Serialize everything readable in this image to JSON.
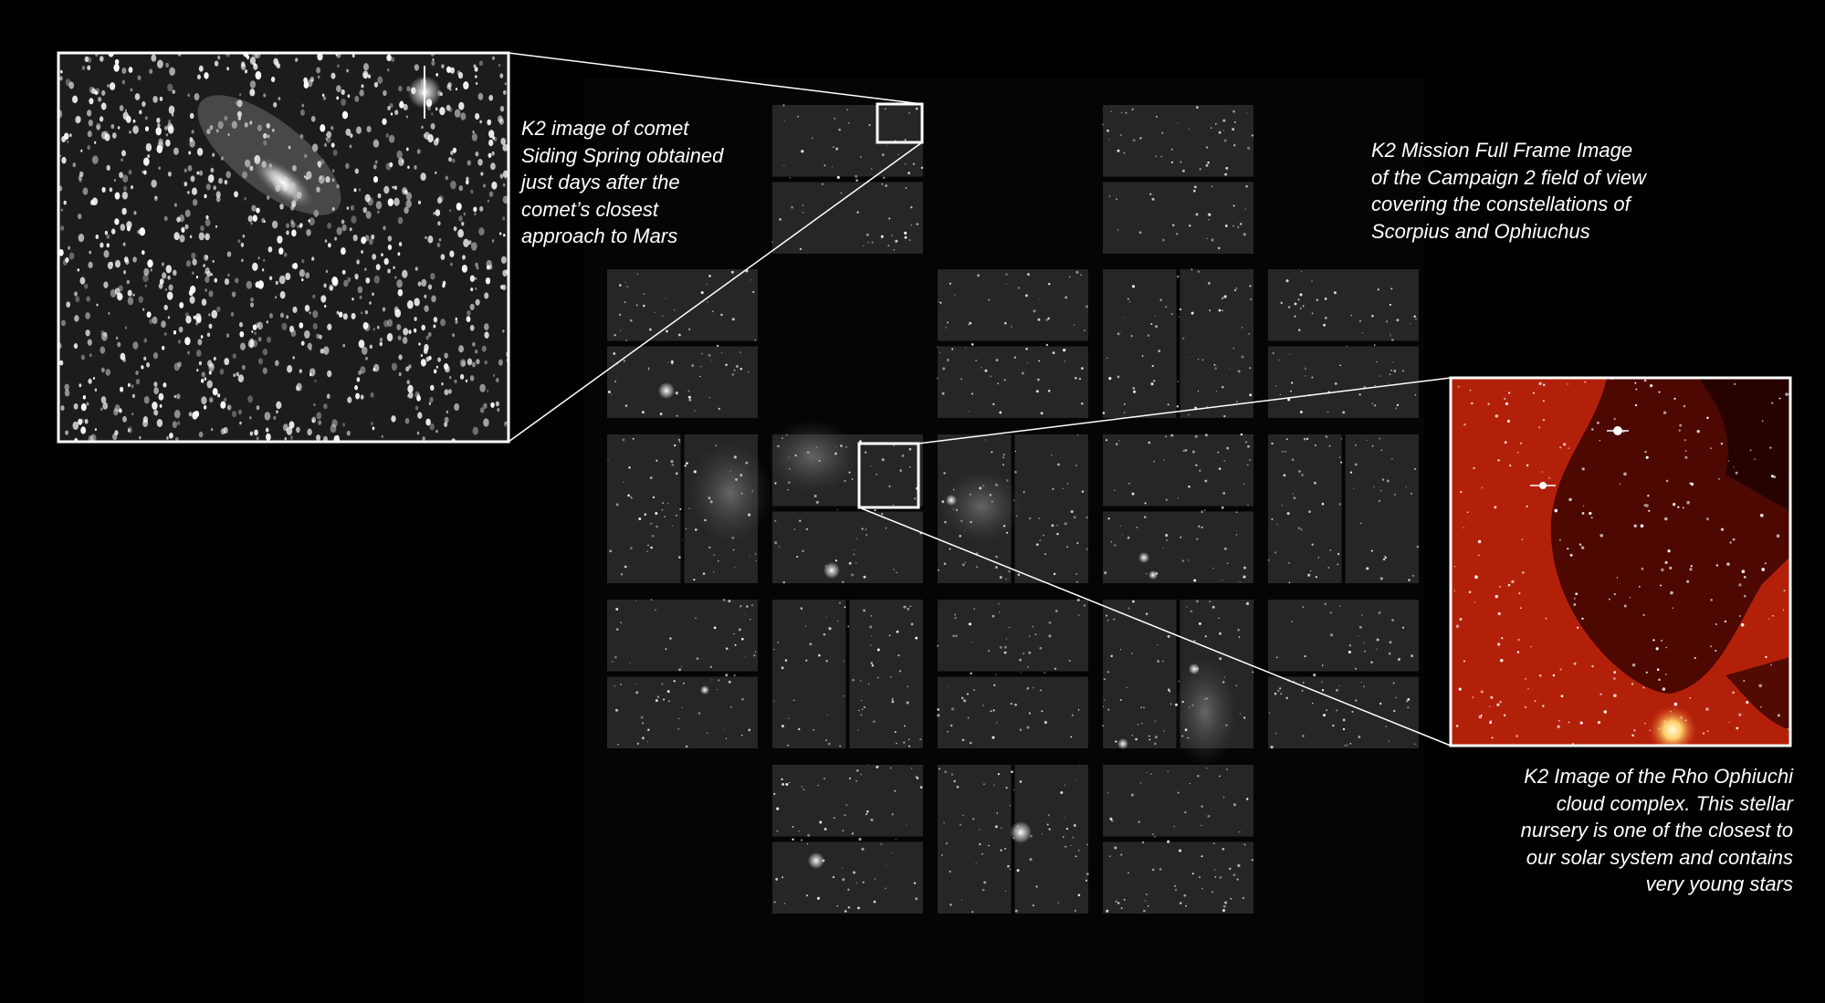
{
  "captions": {
    "comet": "K2 image of comet\nSiding Spring obtained\njust days after the\ncomet’s closest\napproach to Mars",
    "full_frame": "K2 Mission Full Frame Image\nof the Campaign 2 field of view\ncovering the constellations of\nScorpius and Ophiuchus",
    "rho": "K2 Image of the Rho Ophiuchi\ncloud complex. This stellar\nnursery is one of the closest to\nour solar system and contains\nvery young stars"
  },
  "colors": {
    "background": "#000000",
    "ccd_fill": "#262626",
    "inset_border": "#ffffff",
    "nebula_red": "#b3200a",
    "nebula_dark": "#3a0500"
  },
  "insets": {
    "comet": {
      "subject": "comet Siding Spring",
      "tone": "grayscale"
    },
    "rho": {
      "subject": "Rho Ophiuchi cloud complex",
      "tone": "red"
    }
  }
}
